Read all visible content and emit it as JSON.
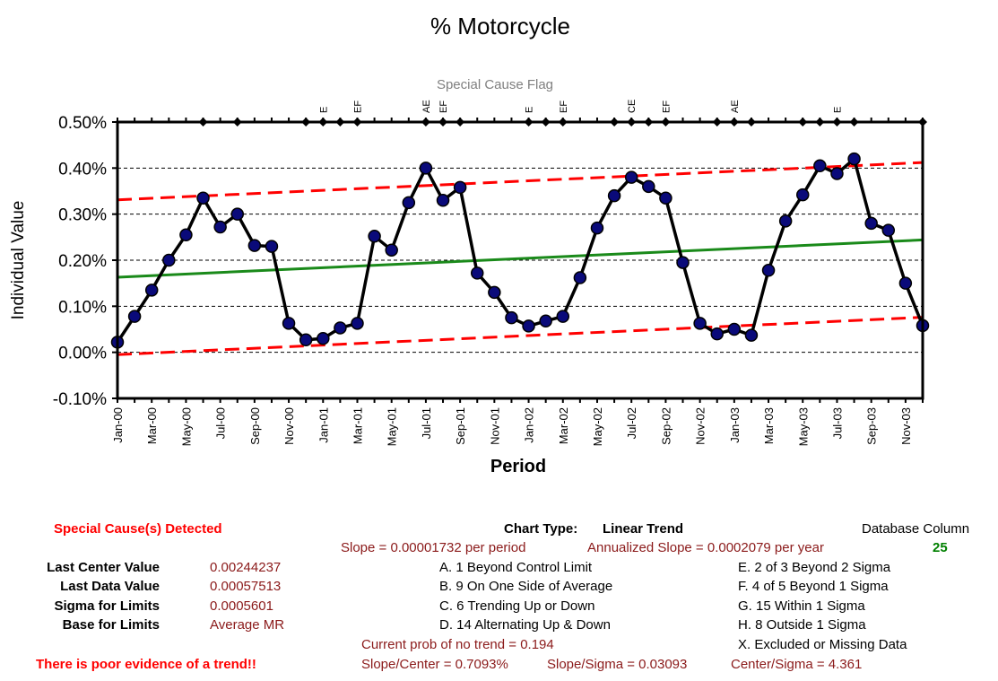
{
  "chart_data": {
    "type": "line",
    "title": "% Motorcycle",
    "subtitle": "Special Cause Flag",
    "xlabel": "Period",
    "ylabel": "Individual Value",
    "ylim": [
      -0.001,
      0.005
    ],
    "y_ticks": [
      "-0.10%",
      "0.00%",
      "0.10%",
      "0.20%",
      "0.30%",
      "0.40%",
      "0.50%"
    ],
    "y_tick_values": [
      -0.001,
      0,
      0.001,
      0.002,
      0.003,
      0.004,
      0.005
    ],
    "x_tick_labels": [
      "Jan-00",
      "Mar-00",
      "May-00",
      "Jul-00",
      "Sep-00",
      "Nov-00",
      "Jan-01",
      "Mar-01",
      "May-01",
      "Jul-01",
      "Sep-01",
      "Nov-01",
      "Jan-02",
      "Mar-02",
      "May-02",
      "Jul-02",
      "Sep-02",
      "Nov-02",
      "Jan-03",
      "Mar-03",
      "May-03",
      "Jul-03",
      "Sep-03",
      "Nov-03"
    ],
    "grid": true,
    "periods": [
      "Jan-00",
      "Feb-00",
      "Mar-00",
      "Apr-00",
      "May-00",
      "Jun-00",
      "Jul-00",
      "Aug-00",
      "Sep-00",
      "Oct-00",
      "Nov-00",
      "Dec-00",
      "Jan-01",
      "Feb-01",
      "Mar-01",
      "Apr-01",
      "May-01",
      "Jun-01",
      "Jul-01",
      "Aug-01",
      "Sep-01",
      "Oct-01",
      "Nov-01",
      "Dec-01",
      "Jan-02",
      "Feb-02",
      "Mar-02",
      "Apr-02",
      "May-02",
      "Jun-02",
      "Jul-02",
      "Aug-02",
      "Sep-02",
      "Oct-02",
      "Nov-02",
      "Dec-02",
      "Jan-03",
      "Feb-03",
      "Mar-03",
      "Apr-03",
      "May-03",
      "Jun-03",
      "Jul-03",
      "Aug-03",
      "Sep-03",
      "Oct-03",
      "Nov-03",
      "Dec-03"
    ],
    "values": [
      0.00022,
      0.00078,
      0.00135,
      0.002,
      0.00255,
      0.00335,
      0.00272,
      0.003,
      0.00232,
      0.0023,
      0.00063,
      0.00027,
      0.0003,
      0.00053,
      0.00063,
      0.00252,
      0.00222,
      0.00325,
      0.004,
      0.0033,
      0.00358,
      0.00172,
      0.0013,
      0.00075,
      0.00057,
      0.00068,
      0.00078,
      0.00162,
      0.0027,
      0.0034,
      0.0038,
      0.0036,
      0.00335,
      0.00195,
      0.00063,
      0.0004,
      0.0005,
      0.00037,
      0.00178,
      0.00285,
      0.00342,
      0.00405,
      0.00388,
      0.0042,
      0.0028,
      0.00265,
      0.0015,
      0.00058
    ],
    "center_line": {
      "start": 0.00163,
      "end": 0.00244
    },
    "upper_limit": {
      "start": 0.00331,
      "end": 0.00412
    },
    "lower_limit": {
      "start": -5e-05,
      "end": 0.00076
    },
    "flag_labels": [
      {
        "period": "Jan-01",
        "label": "E"
      },
      {
        "period": "Mar-01",
        "label": "EF"
      },
      {
        "period": "Jul-01",
        "label": "AE"
      },
      {
        "period": "Aug-01",
        "label": "EF"
      },
      {
        "period": "Jan-02",
        "label": "E"
      },
      {
        "period": "Mar-02",
        "label": "EF"
      },
      {
        "period": "Jul-02",
        "label": "CE"
      },
      {
        "period": "Sep-02",
        "label": "EF"
      },
      {
        "period": "Jan-03",
        "label": "AE"
      },
      {
        "period": "Jul-03",
        "label": "E"
      }
    ],
    "flag_marker_periods": [
      "Jun-00",
      "Aug-00",
      "Dec-00",
      "Jan-01",
      "Feb-01",
      "Mar-01",
      "Jul-01",
      "Aug-01",
      "Sep-01",
      "Jan-02",
      "Feb-02",
      "Mar-02",
      "Jun-02",
      "Jul-02",
      "Aug-02",
      "Sep-02",
      "Dec-02",
      "Jan-03",
      "Feb-03",
      "May-03",
      "Jun-03",
      "Jul-03",
      "Aug-03",
      "Dec-03"
    ],
    "colors": {
      "data_line": "#000000",
      "marker_fill": "#0a0a7a",
      "center": "#1a8a1a",
      "limits": "#ff0000",
      "flag_text": "#808080"
    }
  },
  "panel": {
    "special_cause": "Special Cause(s) Detected",
    "chart_type_label": "Chart Type:",
    "chart_type_value": "Linear Trend",
    "database_column_label": "Database Column",
    "database_column_value": "25",
    "slope": "Slope = 0.00001732 per period",
    "annualized_slope": "Annualized Slope = 0.0002079 per year",
    "stats": [
      {
        "label": "Last Center Value",
        "value": "0.00244237"
      },
      {
        "label": "Last Data Value",
        "value": "0.00057513"
      },
      {
        "label": "Sigma for Limits",
        "value": "0.0005601"
      },
      {
        "label": "Base for Limits",
        "value": "Average MR"
      }
    ],
    "rules_left": [
      "A. 1 Beyond Control Limit",
      "B. 9 On One Side of Average",
      "C. 6 Trending Up or Down",
      "D. 14 Alternating  Up & Down"
    ],
    "rules_right": [
      "E.  2 of 3 Beyond 2 Sigma",
      "F.  4 of 5 Beyond 1 Sigma",
      "G.  15 Within 1 Sigma",
      "H.  8 Outside 1 Sigma",
      "X.  Excluded or Missing Data"
    ],
    "prob_no_trend": "Current prob of no trend = 0.194",
    "trend_evidence": "There is poor evidence of a trend!!",
    "slope_center": "Slope/Center = 0.7093%",
    "slope_sigma": "Slope/Sigma = 0.03093",
    "center_sigma": "Center/Sigma = 4.361"
  }
}
